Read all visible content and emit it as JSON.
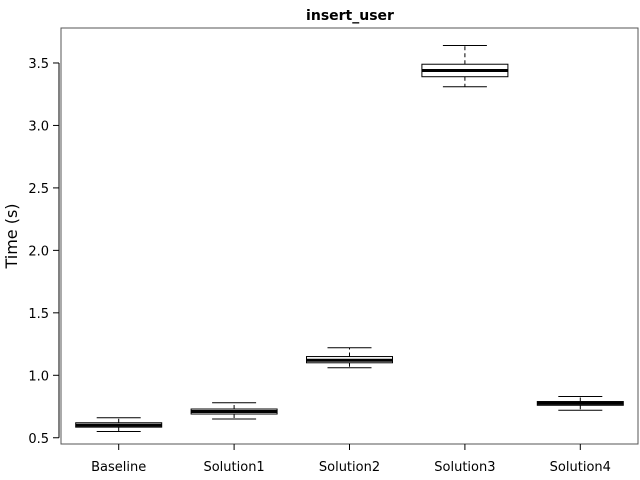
{
  "chart_data": {
    "type": "boxplot",
    "title": "insert_user",
    "xlabel": "",
    "ylabel": "Time (s)",
    "ylim": [
      0.45,
      3.78
    ],
    "yticks": [
      0.5,
      1.0,
      1.5,
      2.0,
      2.5,
      3.0,
      3.5
    ],
    "ytick_labels": [
      "0.5",
      "1.0",
      "1.5",
      "2.0",
      "2.5",
      "3.0",
      "3.5"
    ],
    "grid": false,
    "categories": [
      "Baseline",
      "Solution1",
      "Solution2",
      "Solution3",
      "Solution4"
    ],
    "boxes": [
      {
        "label": "Baseline",
        "whisker_low": 0.55,
        "q1": 0.585,
        "median": 0.6,
        "q3": 0.62,
        "whisker_high": 0.66
      },
      {
        "label": "Solution1",
        "whisker_low": 0.65,
        "q1": 0.69,
        "median": 0.71,
        "q3": 0.73,
        "whisker_high": 0.78
      },
      {
        "label": "Solution2",
        "whisker_low": 1.06,
        "q1": 1.1,
        "median": 1.12,
        "q3": 1.15,
        "whisker_high": 1.22
      },
      {
        "label": "Solution3",
        "whisker_low": 3.31,
        "q1": 3.39,
        "median": 3.44,
        "q3": 3.49,
        "whisker_high": 3.64
      },
      {
        "label": "Solution4",
        "whisker_low": 0.72,
        "q1": 0.76,
        "median": 0.775,
        "q3": 0.79,
        "whisker_high": 0.83
      }
    ]
  }
}
